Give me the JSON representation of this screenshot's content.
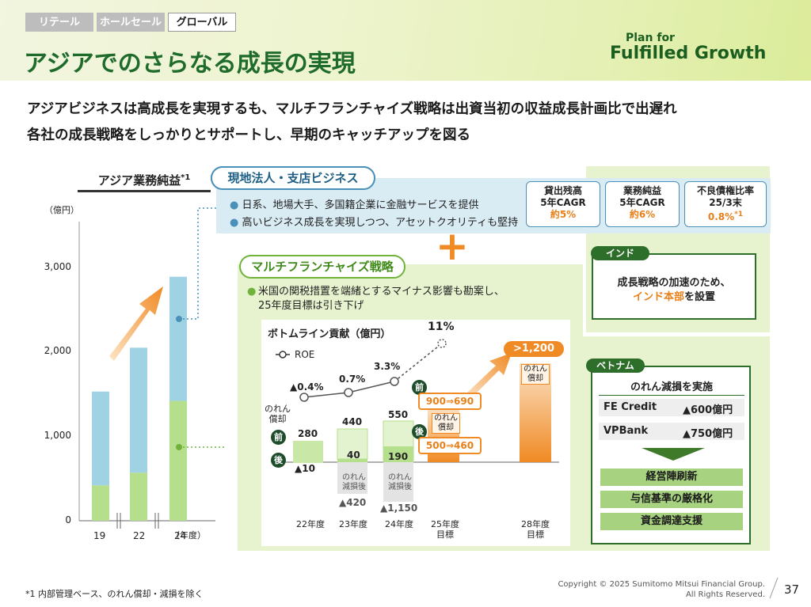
{
  "tabs": [
    {
      "label": "リテール"
    },
    {
      "label": "ホールセール"
    },
    {
      "label": "グローバル"
    }
  ],
  "page_title": "アジアでのさらなる成長の実現",
  "logo": {
    "line1": "Plan for",
    "line2": "Fulfilled Growth"
  },
  "lead": [
    "アジアビジネスは高成長を実現するも、マルチフランチャイズ戦略は出資当初の収益成長計画比で出遅れ",
    "各社の成長戦略をしっかりとサポートし、早期のキャッチアップを図る"
  ],
  "left_chart": {
    "title": "アジア業務純益",
    "title_note": "*1",
    "unit": "（億円）",
    "axis_label": "（年度）",
    "yticks": [
      "3,000",
      "2,000",
      "1,000",
      "0"
    ]
  },
  "chart_data": [
    {
      "type": "bar",
      "title": "アジア業務純益",
      "ylabel": "億円",
      "ylim": [
        0,
        3000
      ],
      "categories": [
        "19",
        "22",
        "24"
      ],
      "series": [
        {
          "name": "マルチフランチャイズ",
          "values": [
            420,
            570,
            1420
          ]
        },
        {
          "name": "現地法人・支店ビジネス",
          "values": [
            1110,
            1480,
            1470
          ]
        }
      ]
    },
    {
      "type": "bar",
      "title": "ボトムライン貢献（億円）",
      "categories": [
        "22年度",
        "23年度",
        "24年度",
        "25年度\n目標",
        "28年度\n目標"
      ],
      "series": [
        {
          "name": "のれん償却前",
          "values": [
            280,
            440,
            550,
            690,
            1200
          ]
        },
        {
          "name": "のれん償却後",
          "values": [
            -10,
            40,
            190,
            460,
            null
          ]
        },
        {
          "name": "のれん減損後",
          "values": [
            null,
            -420,
            -1150,
            null,
            null
          ]
        },
        {
          "name": "ROE(%)",
          "values": [
            -0.4,
            0.7,
            3.3,
            11,
            null
          ]
        }
      ]
    }
  ],
  "local": {
    "title": "現地法人・支店ビジネス",
    "bullets": [
      "日系、地場大手、多国籍企業に金融サービスを提供",
      "高いビジネス成長を実現しつつ、アセットクオリティも堅持"
    ],
    "kpis": [
      {
        "l1": "貸出残高",
        "l2": "5年CAGR",
        "v": "約5%"
      },
      {
        "l1": "業務純益",
        "l2": "5年CAGR",
        "v": "約6%"
      },
      {
        "l1": "不良債権比率",
        "l2": "25/3末",
        "v": "0.8%",
        "note": "*1"
      }
    ]
  },
  "plus": "+",
  "multi": {
    "title": "マルチフランチャイズ戦略",
    "bullet": "米国の関税措置を端緒とするマイナス影響も勘案し、\n25年度目標は引き下げ",
    "chart_title": "ボトムライン貢献（億円）",
    "roe_legend": "ROE",
    "roe_labels": [
      "▲0.4%",
      "0.7%",
      "3.3%",
      "11%"
    ],
    "noren_side": "のれん\n償却",
    "before": "前",
    "after": "後",
    "before_vals": [
      "280",
      "440",
      "550"
    ],
    "after_vals": [
      "▲10",
      "40",
      "190"
    ],
    "impair_label": "のれん\n減損後",
    "impair_vals": [
      "▲420",
      "▲1,150"
    ],
    "fy25_noren": "のれん\n償却",
    "fy25_before": "900⇒690",
    "fy25_after": "500⇒460",
    "fy28_value": ">1,200",
    "fy28_noren": "のれん\n償却",
    "xlabels": [
      "22年度",
      "23年度",
      "24年度",
      "25年度\n目標",
      "28年度\n目標"
    ]
  },
  "india": {
    "tag": "インド",
    "text1": "成長戦略の加速のため、",
    "text2a": "インド本部",
    "text2b": "を設置"
  },
  "vietnam": {
    "tag": "ベトナム",
    "header": "のれん減損を実施",
    "rows": [
      {
        "name": "FE Credit",
        "value": "▲600億円"
      },
      {
        "name": "VPBank",
        "value": "▲750億円"
      }
    ],
    "actions": [
      "経営陣刷新",
      "与信基準の厳格化",
      "資金調達支援"
    ]
  },
  "footnote": "*1 内部管理ベース、のれん償却・減損を除く",
  "copyright": "Copyright © 2025 Sumitomo Mitsui Financial Group.\nAll Rights Reserved.",
  "page_number": "37",
  "colors": {
    "green_dark": "#1e6b2c",
    "blue": "#8fcfdf",
    "green_light": "#b5df8c",
    "orange": "#f08a24"
  }
}
